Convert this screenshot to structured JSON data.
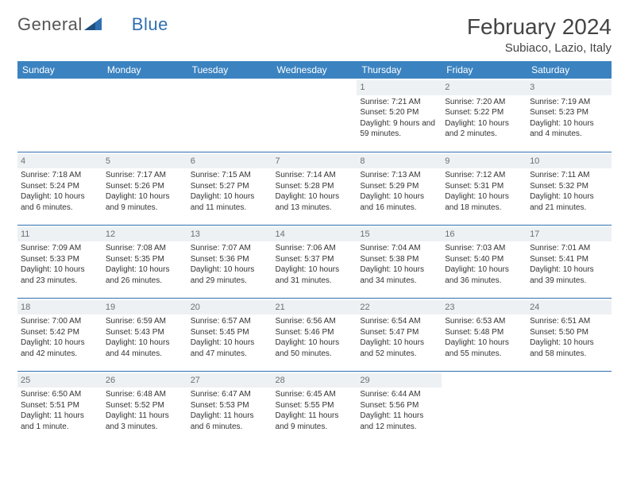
{
  "logo": {
    "text1": "General",
    "text2": "Blue"
  },
  "header": {
    "month": "February 2024",
    "location": "Subiaco, Lazio, Italy"
  },
  "colors": {
    "header_bg": "#3b83c0",
    "header_fg": "#ffffff",
    "rule": "#2f6fb0",
    "daynum_bg": "#eef1f3",
    "daynum_fg": "#6a6f73",
    "text": "#333333",
    "logo_blue": "#2f6fb0"
  },
  "weekdays": [
    "Sunday",
    "Monday",
    "Tuesday",
    "Wednesday",
    "Thursday",
    "Friday",
    "Saturday"
  ],
  "weeks": [
    [
      {
        "blank": true
      },
      {
        "blank": true
      },
      {
        "blank": true
      },
      {
        "blank": true
      },
      {
        "day": "1",
        "sunrise": "Sunrise: 7:21 AM",
        "sunset": "Sunset: 5:20 PM",
        "daylight": "Daylight: 9 hours and 59 minutes."
      },
      {
        "day": "2",
        "sunrise": "Sunrise: 7:20 AM",
        "sunset": "Sunset: 5:22 PM",
        "daylight": "Daylight: 10 hours and 2 minutes."
      },
      {
        "day": "3",
        "sunrise": "Sunrise: 7:19 AM",
        "sunset": "Sunset: 5:23 PM",
        "daylight": "Daylight: 10 hours and 4 minutes."
      }
    ],
    [
      {
        "day": "4",
        "sunrise": "Sunrise: 7:18 AM",
        "sunset": "Sunset: 5:24 PM",
        "daylight": "Daylight: 10 hours and 6 minutes."
      },
      {
        "day": "5",
        "sunrise": "Sunrise: 7:17 AM",
        "sunset": "Sunset: 5:26 PM",
        "daylight": "Daylight: 10 hours and 9 minutes."
      },
      {
        "day": "6",
        "sunrise": "Sunrise: 7:15 AM",
        "sunset": "Sunset: 5:27 PM",
        "daylight": "Daylight: 10 hours and 11 minutes."
      },
      {
        "day": "7",
        "sunrise": "Sunrise: 7:14 AM",
        "sunset": "Sunset: 5:28 PM",
        "daylight": "Daylight: 10 hours and 13 minutes."
      },
      {
        "day": "8",
        "sunrise": "Sunrise: 7:13 AM",
        "sunset": "Sunset: 5:29 PM",
        "daylight": "Daylight: 10 hours and 16 minutes."
      },
      {
        "day": "9",
        "sunrise": "Sunrise: 7:12 AM",
        "sunset": "Sunset: 5:31 PM",
        "daylight": "Daylight: 10 hours and 18 minutes."
      },
      {
        "day": "10",
        "sunrise": "Sunrise: 7:11 AM",
        "sunset": "Sunset: 5:32 PM",
        "daylight": "Daylight: 10 hours and 21 minutes."
      }
    ],
    [
      {
        "day": "11",
        "sunrise": "Sunrise: 7:09 AM",
        "sunset": "Sunset: 5:33 PM",
        "daylight": "Daylight: 10 hours and 23 minutes."
      },
      {
        "day": "12",
        "sunrise": "Sunrise: 7:08 AM",
        "sunset": "Sunset: 5:35 PM",
        "daylight": "Daylight: 10 hours and 26 minutes."
      },
      {
        "day": "13",
        "sunrise": "Sunrise: 7:07 AM",
        "sunset": "Sunset: 5:36 PM",
        "daylight": "Daylight: 10 hours and 29 minutes."
      },
      {
        "day": "14",
        "sunrise": "Sunrise: 7:06 AM",
        "sunset": "Sunset: 5:37 PM",
        "daylight": "Daylight: 10 hours and 31 minutes."
      },
      {
        "day": "15",
        "sunrise": "Sunrise: 7:04 AM",
        "sunset": "Sunset: 5:38 PM",
        "daylight": "Daylight: 10 hours and 34 minutes."
      },
      {
        "day": "16",
        "sunrise": "Sunrise: 7:03 AM",
        "sunset": "Sunset: 5:40 PM",
        "daylight": "Daylight: 10 hours and 36 minutes."
      },
      {
        "day": "17",
        "sunrise": "Sunrise: 7:01 AM",
        "sunset": "Sunset: 5:41 PM",
        "daylight": "Daylight: 10 hours and 39 minutes."
      }
    ],
    [
      {
        "day": "18",
        "sunrise": "Sunrise: 7:00 AM",
        "sunset": "Sunset: 5:42 PM",
        "daylight": "Daylight: 10 hours and 42 minutes."
      },
      {
        "day": "19",
        "sunrise": "Sunrise: 6:59 AM",
        "sunset": "Sunset: 5:43 PM",
        "daylight": "Daylight: 10 hours and 44 minutes."
      },
      {
        "day": "20",
        "sunrise": "Sunrise: 6:57 AM",
        "sunset": "Sunset: 5:45 PM",
        "daylight": "Daylight: 10 hours and 47 minutes."
      },
      {
        "day": "21",
        "sunrise": "Sunrise: 6:56 AM",
        "sunset": "Sunset: 5:46 PM",
        "daylight": "Daylight: 10 hours and 50 minutes."
      },
      {
        "day": "22",
        "sunrise": "Sunrise: 6:54 AM",
        "sunset": "Sunset: 5:47 PM",
        "daylight": "Daylight: 10 hours and 52 minutes."
      },
      {
        "day": "23",
        "sunrise": "Sunrise: 6:53 AM",
        "sunset": "Sunset: 5:48 PM",
        "daylight": "Daylight: 10 hours and 55 minutes."
      },
      {
        "day": "24",
        "sunrise": "Sunrise: 6:51 AM",
        "sunset": "Sunset: 5:50 PM",
        "daylight": "Daylight: 10 hours and 58 minutes."
      }
    ],
    [
      {
        "day": "25",
        "sunrise": "Sunrise: 6:50 AM",
        "sunset": "Sunset: 5:51 PM",
        "daylight": "Daylight: 11 hours and 1 minute."
      },
      {
        "day": "26",
        "sunrise": "Sunrise: 6:48 AM",
        "sunset": "Sunset: 5:52 PM",
        "daylight": "Daylight: 11 hours and 3 minutes."
      },
      {
        "day": "27",
        "sunrise": "Sunrise: 6:47 AM",
        "sunset": "Sunset: 5:53 PM",
        "daylight": "Daylight: 11 hours and 6 minutes."
      },
      {
        "day": "28",
        "sunrise": "Sunrise: 6:45 AM",
        "sunset": "Sunset: 5:55 PM",
        "daylight": "Daylight: 11 hours and 9 minutes."
      },
      {
        "day": "29",
        "sunrise": "Sunrise: 6:44 AM",
        "sunset": "Sunset: 5:56 PM",
        "daylight": "Daylight: 11 hours and 12 minutes."
      },
      {
        "blank": true
      },
      {
        "blank": true
      }
    ]
  ]
}
